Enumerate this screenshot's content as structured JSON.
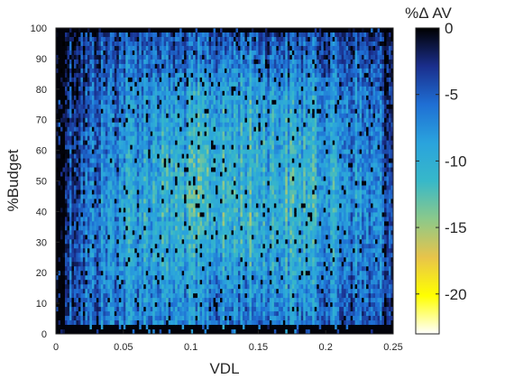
{
  "chart_data": {
    "type": "heatmap",
    "xlabel": "VDL",
    "ylabel": "%Budget",
    "xlim": [
      0,
      0.25
    ],
    "ylim": [
      0,
      100
    ],
    "x_ticks": [
      "0",
      "0.05",
      "0.1",
      "0.15",
      "0.2",
      "0.25"
    ],
    "y_ticks": [
      "0",
      "10",
      "20",
      "30",
      "40",
      "50",
      "60",
      "70",
      "80",
      "90",
      "100"
    ],
    "x_tick_values": [
      0,
      0.05,
      0.1,
      0.15,
      0.2,
      0.25
    ],
    "y_tick_values": [
      0,
      10,
      20,
      30,
      40,
      50,
      60,
      70,
      80,
      90,
      100
    ],
    "colorbar": {
      "title": "%Δ AV",
      "range": [
        -23,
        0
      ],
      "ticks": [
        "0",
        "-5",
        "-10",
        "-15",
        "-20"
      ],
      "tick_values": [
        0,
        -5,
        -10,
        -15,
        -20
      ],
      "colormap": [
        "#ffffff",
        "#ffff00",
        "#e8c44a",
        "#8cc98a",
        "#37b8c9",
        "#2aa3dd",
        "#1f6fd4",
        "#1a2e8c",
        "#000000"
      ]
    },
    "x_columns": 15,
    "y_rows": 10,
    "z_mean_grid": [
      [
        -3.0,
        -4.5,
        -6.0,
        -7.0,
        -7.0,
        -6.5,
        -6.0,
        -6.0,
        -6.5,
        -6.5,
        -7.0,
        -6.0,
        -5.0,
        -4.0,
        -3.5
      ],
      [
        -3.0,
        -5.0,
        -6.5,
        -7.5,
        -8.0,
        -7.5,
        -7.0,
        -7.0,
        -7.5,
        -7.5,
        -8.0,
        -7.0,
        -6.0,
        -5.0,
        -4.0
      ],
      [
        -3.0,
        -5.5,
        -7.0,
        -8.5,
        -9.0,
        -9.0,
        -8.5,
        -8.5,
        -9.5,
        -9.0,
        -9.5,
        -8.5,
        -7.0,
        -6.0,
        -4.5
      ],
      [
        -2.5,
        -5.5,
        -7.5,
        -9.0,
        -9.5,
        -10.0,
        -10.5,
        -10.0,
        -11.0,
        -10.0,
        -10.5,
        -9.5,
        -8.0,
        -6.5,
        -5.0
      ],
      [
        -2.5,
        -5.5,
        -7.5,
        -9.0,
        -10.0,
        -10.5,
        -11.5,
        -10.5,
        -11.0,
        -10.5,
        -11.0,
        -10.0,
        -8.5,
        -7.0,
        -5.0
      ],
      [
        -2.0,
        -5.0,
        -7.0,
        -8.5,
        -9.5,
        -10.0,
        -11.0,
        -10.0,
        -10.5,
        -10.0,
        -10.5,
        -9.5,
        -8.0,
        -6.5,
        -4.5
      ],
      [
        -2.0,
        -4.5,
        -6.5,
        -8.0,
        -9.0,
        -9.0,
        -10.0,
        -9.5,
        -10.0,
        -9.5,
        -10.0,
        -9.0,
        -7.5,
        -6.0,
        -4.0
      ],
      [
        -2.0,
        -4.0,
        -6.0,
        -7.0,
        -8.0,
        -8.0,
        -9.0,
        -8.5,
        -9.5,
        -8.5,
        -9.0,
        -8.0,
        -7.0,
        -5.5,
        -3.5
      ],
      [
        -1.5,
        -3.5,
        -5.0,
        -6.0,
        -6.5,
        -5.5,
        -6.0,
        -6.5,
        -7.5,
        -6.0,
        -6.5,
        -5.5,
        -5.0,
        -4.5,
        -3.0
      ],
      [
        -1.0,
        -2.5,
        -3.5,
        -4.0,
        -4.0,
        -3.5,
        -3.5,
        -4.0,
        -4.5,
        -4.0,
        -4.0,
        -3.5,
        -3.5,
        -3.0,
        -2.0
      ]
    ]
  }
}
